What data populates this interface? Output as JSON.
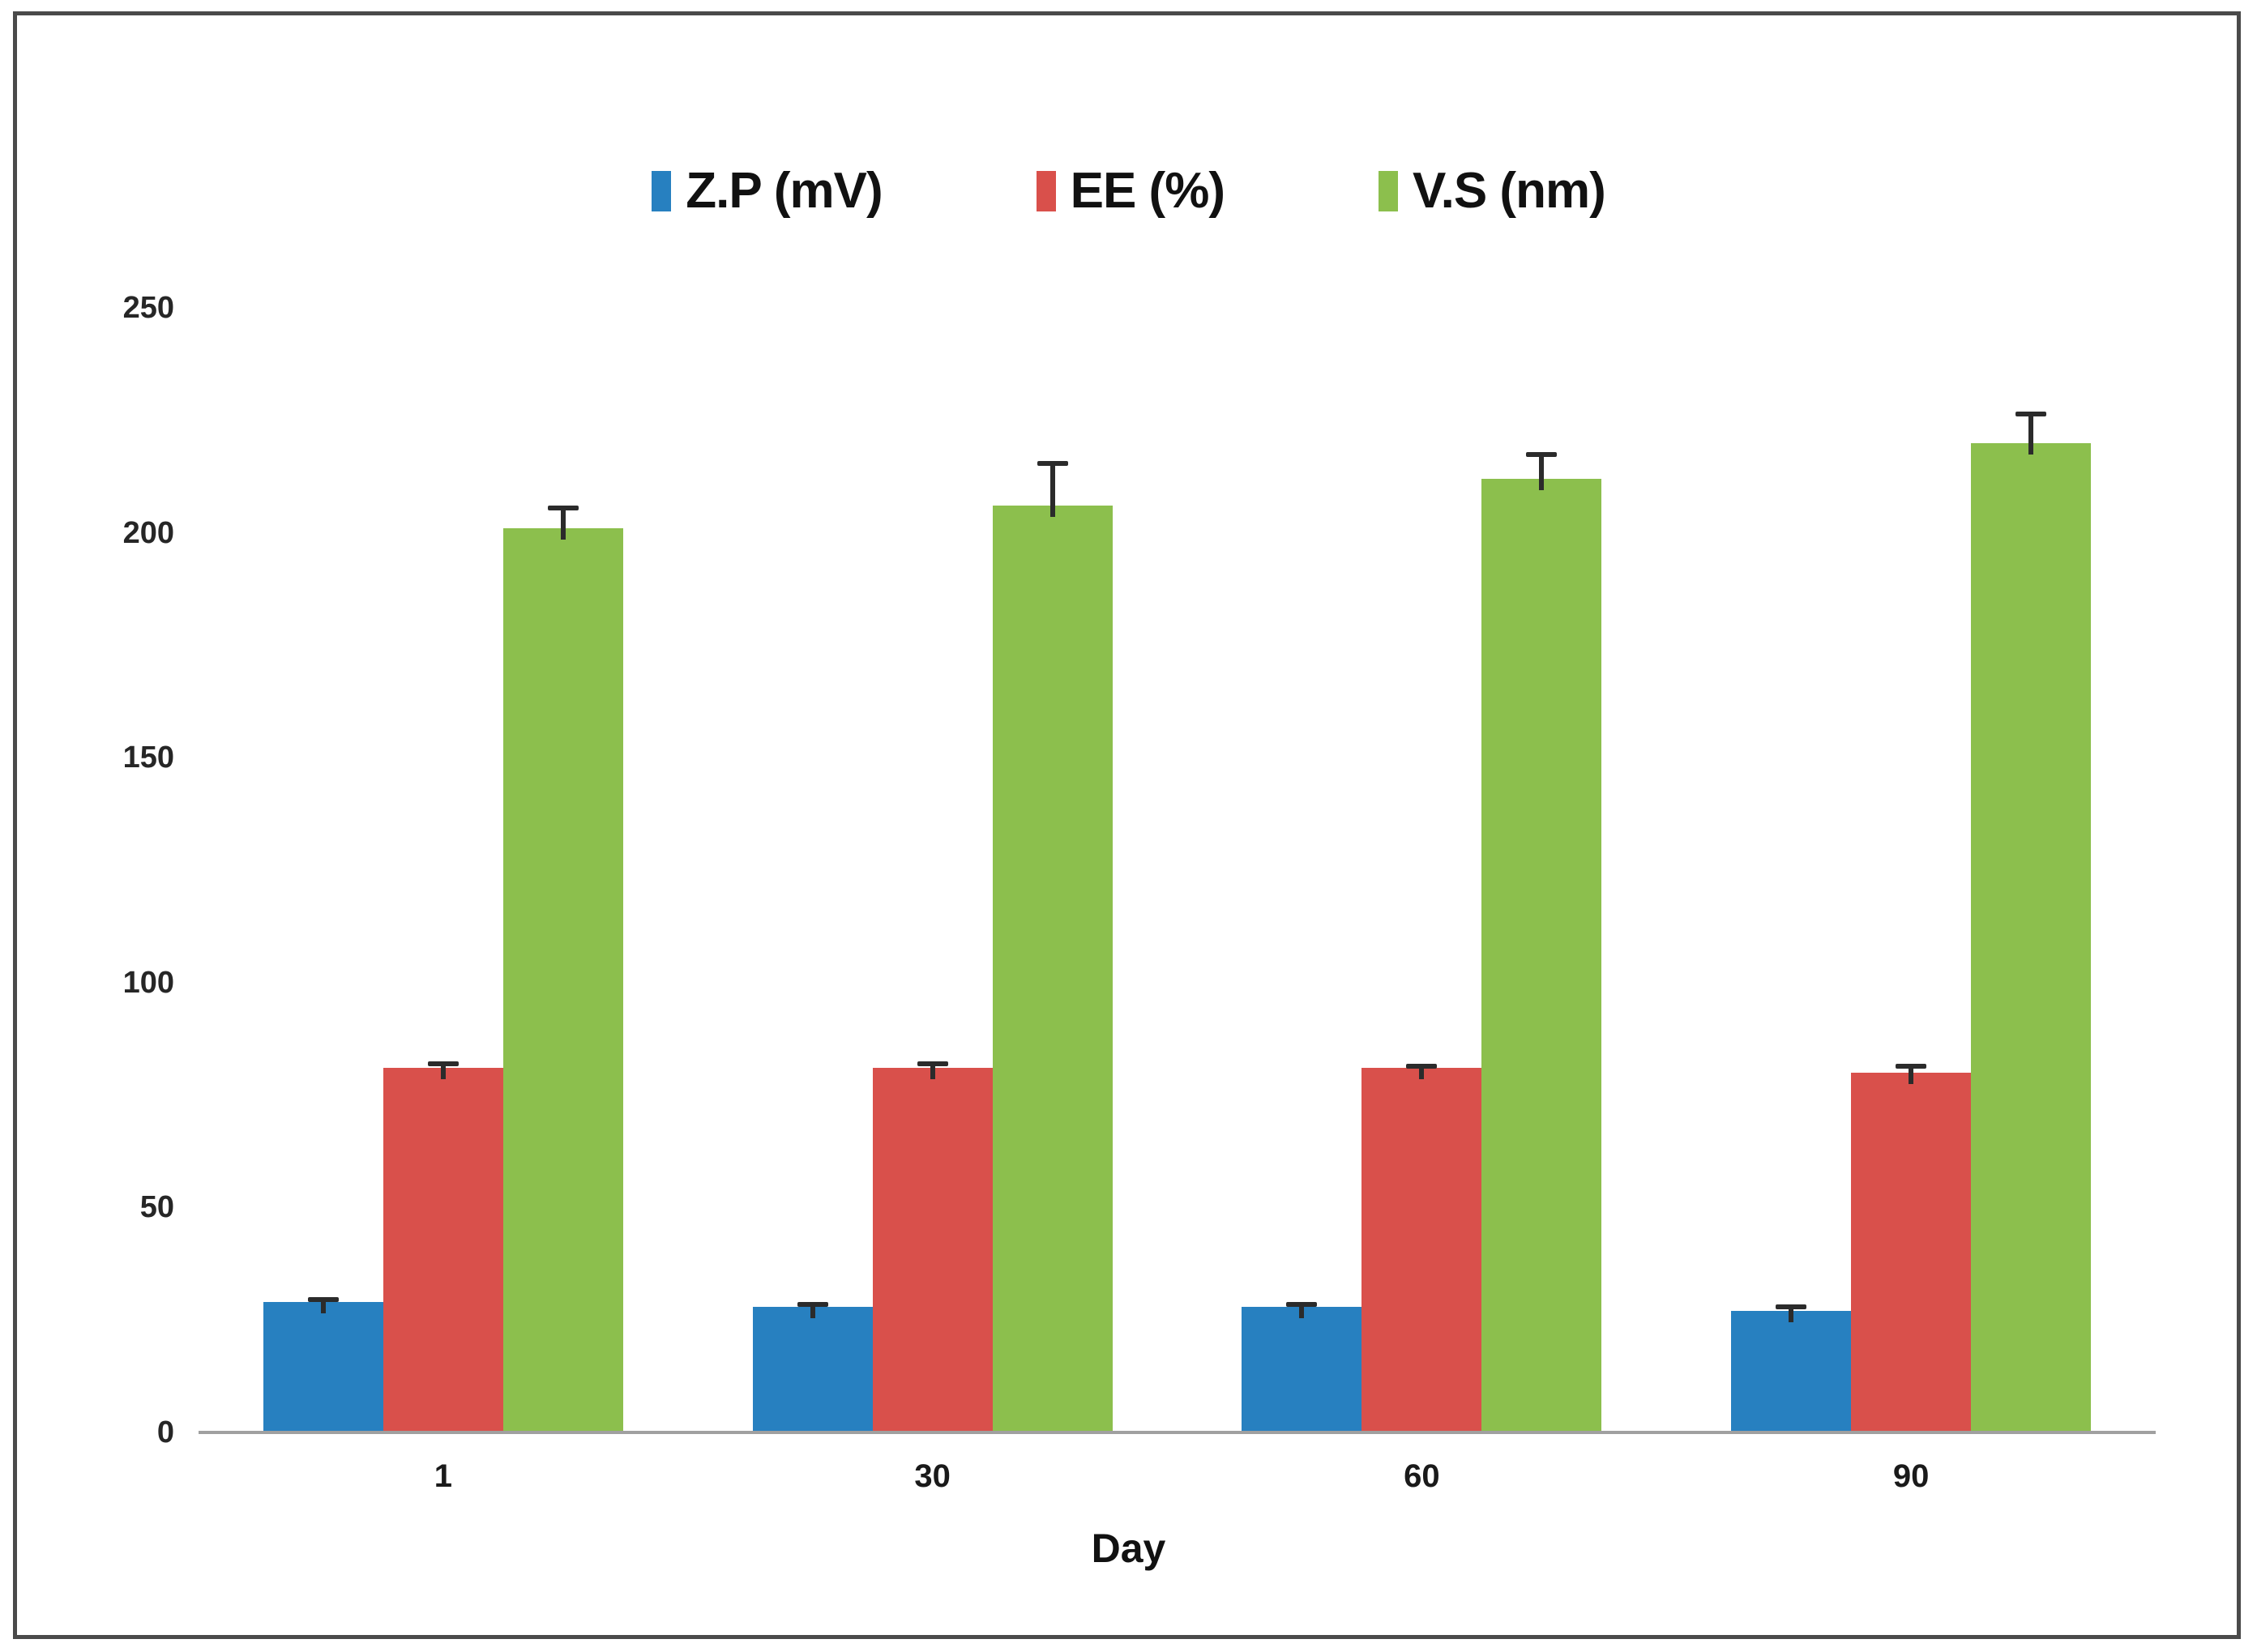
{
  "colors": {
    "series_blue": "#2780C0",
    "series_red": "#D9504B",
    "series_green": "#8CBF4D",
    "axis_line": "#a0a0a0",
    "error_bar": "#2b2b2b",
    "frame_border": "#4a4a4a",
    "tick_text": "#262626"
  },
  "chart_data": {
    "type": "bar",
    "title": "",
    "xlabel": "Day",
    "ylabel": "",
    "categories": [
      "1",
      "30",
      "60",
      "90"
    ],
    "series": [
      {
        "name": "Z.P (mV)",
        "color": "#2780C0",
        "values": [
          29,
          28,
          28,
          27
        ],
        "errors": [
          1,
          1,
          1,
          1.5
        ]
      },
      {
        "name": "EE (%)",
        "color": "#D9504B",
        "values": [
          81,
          81,
          81,
          80
        ],
        "errors": [
          1.5,
          1.5,
          1,
          2
        ]
      },
      {
        "name": "V.S (nm)",
        "color": "#8CBF4D",
        "values": [
          201,
          206,
          212,
          220
        ],
        "errors": [
          5,
          10,
          6,
          7
        ]
      }
    ],
    "ylim": [
      0,
      250
    ],
    "yticks": [
      0,
      50,
      100,
      150,
      200,
      250
    ],
    "grid": false,
    "error_bars": true,
    "legend_position": "top-center"
  }
}
